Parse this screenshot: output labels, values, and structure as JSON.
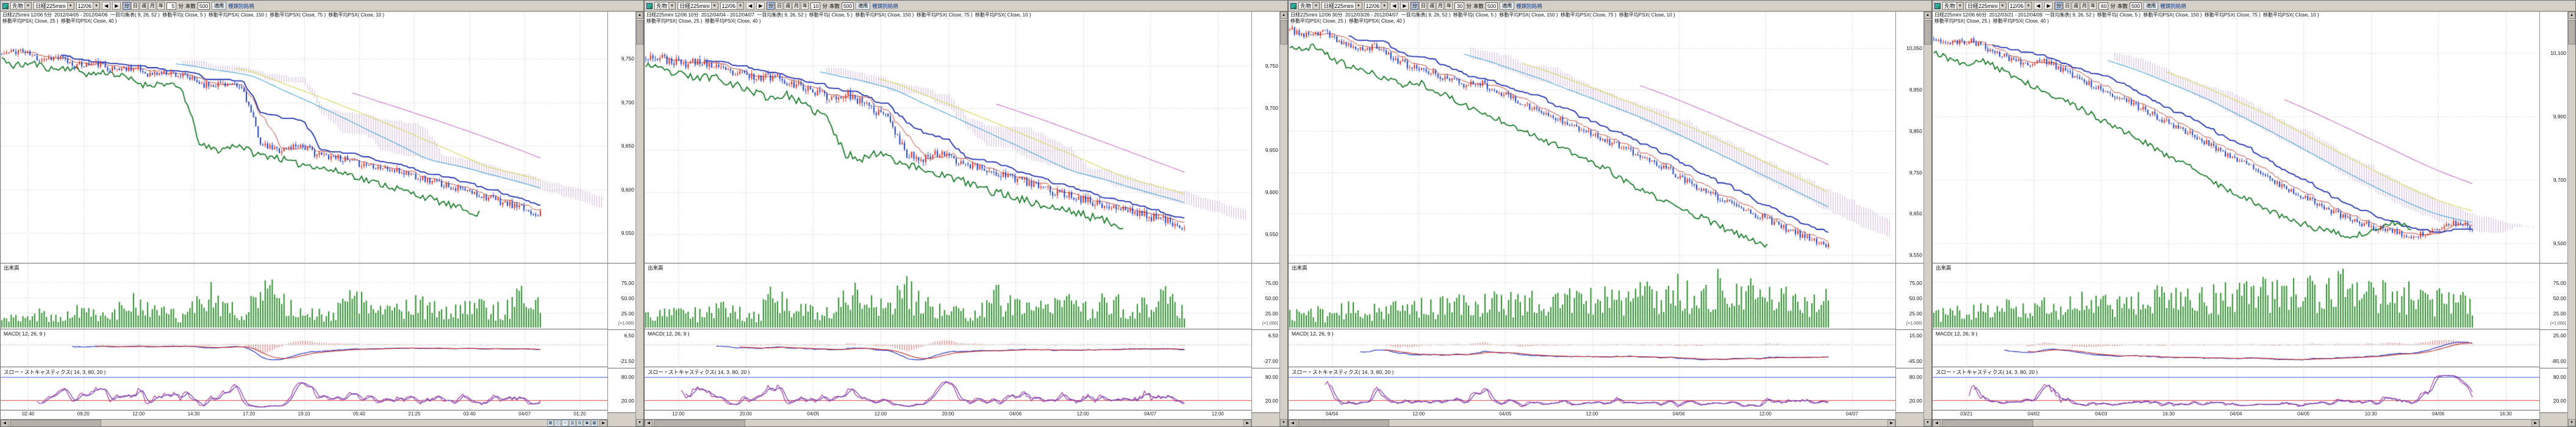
{
  "colors": {
    "up": "#d93025",
    "down": "#2040c0",
    "volume": "#2f8f2f",
    "cloud": "#9a6ab8",
    "tenkan": "#c04030",
    "kijun": "#2030b0",
    "chikou": "#1a7a2a",
    "ma75": "#50a8d8",
    "ma150": "#c878c8",
    "ma_long": "#d8d860",
    "macd": "#2030c0",
    "signal": "#c03030",
    "hist": "#d04040",
    "stoch_k": "#a03898",
    "stoch_d": "#6838b0",
    "ob_line": "#4858e8",
    "os_line": "#e04848",
    "grid": "#c4c4c4"
  },
  "icon_glyphs": {
    "calendar-icon": "▦",
    "candlestick-icon": "◫",
    "line-chart-icon": "≈",
    "bar-chart-icon": "▥",
    "grid-icon": "▤",
    "print-icon": "▣",
    "settings-icon": "▩"
  },
  "panels": [
    {
      "toolbar": {
        "market": "先物",
        "symbol": "日経225mini",
        "contract": "12/06",
        "period_buttons": [
          "分",
          "日",
          "週",
          "月",
          "年"
        ],
        "interval": "5",
        "interval_unit": "分",
        "bars_label": "本数",
        "bars": "500",
        "apply": "適用",
        "related": "種類別銘柄"
      },
      "legend_line1": "日経225mini 12/06 5分  2012/04/05 - 2012/04/06  一目均衡表( 9, 26, 52 )  移動平均( Close, 5 )  移動平均PSX( Close, 150 )  移動平均PSX( Close, 75 )  移動平均PSX( Close, 10 )",
      "legend_line2": "移動平均PSX( Close, 25 )  移動平均PSX( Close, 40 )",
      "sections": {
        "volume_label": "出来高",
        "macd_label": "MACD( 12, 26, 9 )",
        "stoch_label": "スロー・ストキャスティクス( 14, 3, 80, 20 )"
      },
      "price_axis": {
        "min": 9520,
        "max": 9800,
        "ticks": [
          {
            "v": 9750,
            "label": "9,750"
          },
          {
            "v": 9700,
            "label": "9,700"
          },
          {
            "v": 9650,
            "label": "9,650"
          },
          {
            "v": 9600,
            "label": "9,600"
          },
          {
            "v": 9550,
            "label": "9,550"
          }
        ]
      },
      "volume_axis": [
        {
          "label": "75.00",
          "f": 0.3
        },
        {
          "label": "50.00",
          "f": 0.53
        },
        {
          "label": "25.00",
          "f": 0.76
        },
        {
          "label": "(×1,000)",
          "f": 0.93
        }
      ],
      "macd_axis": [
        {
          "label": "6.50",
          "f": 0.15
        },
        {
          "label": "-21.50",
          "f": 0.82
        }
      ],
      "stoch_axis": [
        {
          "label": "80.00",
          "f": 0.2
        },
        {
          "label": "20.00",
          "f": 0.74
        }
      ],
      "x_labels": [
        "02:40",
        "09:20",
        "12:00",
        "14:30",
        "17:20",
        "19:10",
        "05:40",
        "21:25",
        "03:40",
        "04/07",
        "01:20"
      ],
      "bottom_icons": [
        "calendar-icon",
        "candlestick-icon",
        "line-chart-icon",
        "bar-chart-icon",
        "grid-icon",
        "print-icon",
        "settings-icon"
      ],
      "chart_data": {
        "type": "candlestick",
        "n_bars": 230,
        "seed": 11,
        "noise": 4,
        "close_keypoints": [
          9755,
          9760,
          9750,
          9752,
          9742,
          9745,
          9738,
          9740,
          9732,
          9735,
          9728,
          9720,
          9722,
          9715,
          9650,
          9645,
          9652,
          9640,
          9638,
          9630,
          9628,
          9622,
          9618,
          9610,
          9605,
          9598,
          9592,
          9585,
          9578,
          9572
        ],
        "volume_profile": [
          0.2,
          0.25,
          0.3,
          0.2,
          0.35,
          0.3,
          0.25,
          0.7,
          0.35,
          0.3,
          0.25,
          0.85,
          0.45,
          0.35,
          0.95,
          0.55,
          0.35,
          0.3,
          0.35,
          0.65,
          0.4,
          0.35,
          0.55,
          0.45,
          0.35,
          0.6,
          0.4,
          0.4,
          0.65,
          0.45
        ]
      }
    },
    {
      "toolbar": {
        "market": "先物",
        "symbol": "日経225mini",
        "contract": "12/06",
        "period_buttons": [
          "分",
          "日",
          "週",
          "月",
          "年"
        ],
        "interval": "10",
        "interval_unit": "分",
        "bars_label": "本数",
        "bars": "500",
        "apply": "適用",
        "related": "種類別銘柄"
      },
      "legend_line1": "日経225mini 12/06 10分  2012/04/04 - 2012/04/07  一目均衡表( 9, 26, 52 )  移動平均( Close, 5 )  移動平均PSX( Close, 150 )  移動平均PSX( Close, 75 )  移動平均PSX( Close, 10 )",
      "legend_line2": "移動平均PSX( Close, 25 )  移動平均PSX( Close, 40 )",
      "sections": {
        "volume_label": "出来高",
        "macd_label": "MACD( 12, 26, 9 )",
        "stoch_label": "スロー・ストキャスティクス( 14, 3, 80, 20 )"
      },
      "price_axis": {
        "min": 9520,
        "max": 9810,
        "ticks": [
          {
            "v": 9750,
            "label": "9,750"
          },
          {
            "v": 9700,
            "label": "9,700"
          },
          {
            "v": 9650,
            "label": "9,650"
          },
          {
            "v": 9600,
            "label": "9,600"
          },
          {
            "v": 9550,
            "label": "9,550"
          }
        ]
      },
      "volume_axis": [
        {
          "label": "75.00",
          "f": 0.3
        },
        {
          "label": "50.00",
          "f": 0.53
        },
        {
          "label": "25.00",
          "f": 0.76
        },
        {
          "label": "(×1,000)",
          "f": 0.93
        }
      ],
      "macd_axis": [
        {
          "label": "6.50",
          "f": 0.15
        },
        {
          "label": "-27.00",
          "f": 0.82
        }
      ],
      "stoch_axis": [
        {
          "label": "80.00",
          "f": 0.2
        },
        {
          "label": "20.00",
          "f": 0.74
        }
      ],
      "x_labels": [
        "12:00",
        "20:00",
        "04/05",
        "12:00",
        "20:00",
        "04/06",
        "12:00",
        "04/07",
        "12:00"
      ],
      "chart_data": {
        "type": "candlestick",
        "n_bars": 230,
        "seed": 23,
        "noise": 5,
        "close_keypoints": [
          9762,
          9758,
          9752,
          9755,
          9745,
          9740,
          9735,
          9738,
          9728,
          9720,
          9712,
          9715,
          9700,
          9690,
          9645,
          9640,
          9648,
          9635,
          9628,
          9622,
          9615,
          9608,
          9600,
          9595,
          9588,
          9582,
          9578,
          9572,
          9566,
          9560
        ],
        "volume_profile": [
          0.25,
          0.3,
          0.35,
          0.3,
          0.4,
          0.35,
          0.3,
          0.75,
          0.4,
          0.35,
          0.3,
          0.9,
          0.5,
          0.4,
          0.85,
          0.5,
          0.4,
          0.35,
          0.4,
          0.7,
          0.45,
          0.4,
          0.6,
          0.5,
          0.4,
          0.65,
          0.45,
          0.45,
          0.7,
          0.5
        ]
      }
    },
    {
      "toolbar": {
        "market": "先物",
        "symbol": "日経225mini",
        "contract": "12/06",
        "period_buttons": [
          "分",
          "日",
          "週",
          "月",
          "年"
        ],
        "interval": "30",
        "interval_unit": "分",
        "bars_label": "本数",
        "bars": "500",
        "apply": "適用",
        "related": "種類別銘柄"
      },
      "legend_line1": "日経225mini 12/06 30分  2012/03/26 - 2012/04/07  一目均衡表( 9, 26, 52 )  移動平均( Close, 5 )  移動平均PSX( Close, 150 )  移動平均PSX( Close, 75 )  移動平均PSX( Close, 10 )",
      "legend_line2": "移動平均PSX( Close, 25 )  移動平均PSX( Close, 40 )",
      "sections": {
        "volume_label": "出来高",
        "macd_label": "MACD( 12, 26, 9 )",
        "stoch_label": "スロー・ストキャスティクス( 14, 3, 80, 20 )"
      },
      "price_axis": {
        "min": 9540,
        "max": 10130,
        "ticks": [
          {
            "v": 10050,
            "label": "10,050"
          },
          {
            "v": 9950,
            "label": "9,950"
          },
          {
            "v": 9850,
            "label": "9,850"
          },
          {
            "v": 9750,
            "label": "9,750"
          },
          {
            "v": 9650,
            "label": "9,650"
          },
          {
            "v": 9550,
            "label": "9,550"
          }
        ]
      },
      "volume_axis": [
        {
          "label": "75.00",
          "f": 0.3
        },
        {
          "label": "50.00",
          "f": 0.53
        },
        {
          "label": "25.00",
          "f": 0.76
        },
        {
          "label": "(×1,000)",
          "f": 0.93
        }
      ],
      "macd_axis": [
        {
          "label": "15.00",
          "f": 0.15
        },
        {
          "label": "-45.00",
          "f": 0.82
        }
      ],
      "stoch_axis": [
        {
          "label": "80.00",
          "f": 0.2
        },
        {
          "label": "20.00",
          "f": 0.74
        }
      ],
      "x_labels": [
        "04/04",
        "12:00",
        "04/05",
        "12:00",
        "04/06",
        "12:00",
        "04/07"
      ],
      "chart_data": {
        "type": "candlestick",
        "n_bars": 230,
        "seed": 37,
        "noise": 8,
        "close_keypoints": [
          10095,
          10080,
          10088,
          10065,
          10045,
          10055,
          10025,
          10005,
          9992,
          9978,
          9962,
          9968,
          9945,
          9925,
          9905,
          9885,
          9872,
          9852,
          9832,
          9812,
          9792,
          9772,
          9752,
          9722,
          9702,
          9682,
          9662,
          9645,
          9625,
          9605,
          9588,
          9575
        ],
        "volume_profile": [
          0.3,
          0.35,
          0.3,
          0.4,
          0.35,
          0.45,
          0.4,
          0.5,
          0.45,
          0.55,
          0.5,
          0.6,
          0.55,
          0.65,
          0.5,
          0.7,
          0.55,
          0.75,
          0.6,
          0.8,
          0.65,
          0.85,
          0.6,
          0.9,
          0.65,
          0.8,
          0.6,
          0.75,
          0.55,
          0.7
        ]
      }
    },
    {
      "toolbar": {
        "market": "先物",
        "symbol": "日経225mini",
        "contract": "12/06",
        "period_buttons": [
          "分",
          "日",
          "週",
          "月",
          "年"
        ],
        "interval": "60",
        "interval_unit": "分",
        "bars_label": "本数",
        "bars": "500",
        "apply": "適用",
        "related": "種類別銘柄"
      },
      "legend_line1": "日経225mini 12/06 60分  2012/03/21 - 2012/04/09  一目均衡表( 9, 26, 52 )  移動平均( Close, 5 )  移動平均PSX( Close, 150 )  移動平均PSX( Close, 75 )  移動平均PSX( Close, 10 )",
      "legend_line2": "移動平均PSX( Close, 25 )  移動平均PSX( Close, 40 )",
      "sections": {
        "volume_label": "出来高",
        "macd_label": "MACD( 12, 26, 9 )",
        "stoch_label": "スロー・ストキャスティクス( 14, 3, 80, 20 )"
      },
      "price_axis": {
        "min": 9450,
        "max": 10220,
        "ticks": [
          {
            "v": 10100,
            "label": "10,100"
          },
          {
            "v": 9900,
            "label": "9,900"
          },
          {
            "v": 9700,
            "label": "9,700"
          },
          {
            "v": 9500,
            "label": "9,500"
          }
        ]
      },
      "volume_axis": [
        {
          "label": "75.00",
          "f": 0.3
        },
        {
          "label": "50.00",
          "f": 0.53
        },
        {
          "label": "25.00",
          "f": 0.76
        },
        {
          "label": "(×1,000)",
          "f": 0.93
        }
      ],
      "macd_axis": [
        {
          "label": "25.00",
          "f": 0.15
        },
        {
          "label": "-85.00",
          "f": 0.82
        }
      ],
      "stoch_axis": [
        {
          "label": "80.00",
          "f": 0.2
        },
        {
          "label": "20.00",
          "f": 0.74
        }
      ],
      "x_labels": [
        "03/21",
        "04/02",
        "04/03",
        "16:30",
        "04/04",
        "04/05",
        "10:30",
        "04/06",
        "16:30"
      ],
      "chart_data": {
        "type": "candlestick",
        "n_bars": 230,
        "seed": 51,
        "noise": 10,
        "close_keypoints": [
          10150,
          10130,
          10140,
          10110,
          10085,
          10065,
          10075,
          10045,
          10015,
          9990,
          9960,
          9930,
          9900,
          9870,
          9840,
          9805,
          9775,
          9745,
          9705,
          9675,
          9645,
          9615,
          9585,
          9565,
          9545,
          9532,
          9522,
          9545,
          9565,
          9552
        ],
        "volume_profile": [
          0.35,
          0.3,
          0.4,
          0.35,
          0.45,
          0.4,
          0.5,
          0.45,
          0.55,
          0.5,
          0.6,
          0.55,
          0.65,
          0.6,
          0.7,
          0.65,
          0.75,
          0.7,
          0.8,
          0.75,
          0.85,
          0.8,
          0.9,
          0.85,
          0.8,
          0.75,
          0.7,
          0.65,
          0.6,
          0.55
        ]
      }
    }
  ]
}
